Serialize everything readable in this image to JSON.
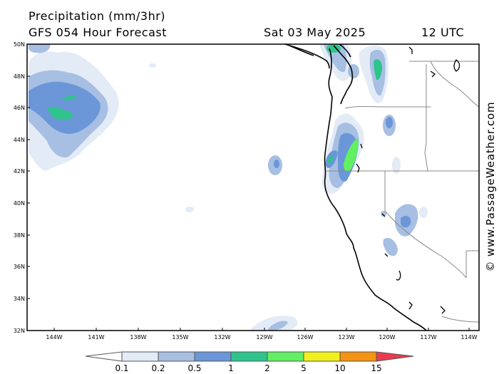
{
  "header": {
    "title": "Precipitation (mm/3hr)",
    "model_line": "GFS 054 Hour Forecast",
    "date": "Sat 03 May 2025",
    "time": "12 UTC"
  },
  "map": {
    "lat_labels": [
      "50N",
      "48N",
      "46N",
      "44N",
      "42N",
      "40N",
      "38N",
      "36N",
      "34N",
      "32N"
    ],
    "lon_labels": [
      "144W",
      "141W",
      "138W",
      "135W",
      "132W",
      "129W",
      "126W",
      "123W",
      "120W",
      "117W",
      "114W"
    ]
  },
  "legend": {
    "labels": [
      "0.1",
      "0.2",
      "0.5",
      "1",
      "2",
      "5",
      "10",
      "15"
    ],
    "colors": [
      "#ffffff",
      "#e3ebf6",
      "#a6bfe2",
      "#6b96d8",
      "#2fc48c",
      "#61f061",
      "#f2f01c",
      "#f59312",
      "#ea3b4e"
    ]
  },
  "credit": "© www.PassageWeather.com"
}
